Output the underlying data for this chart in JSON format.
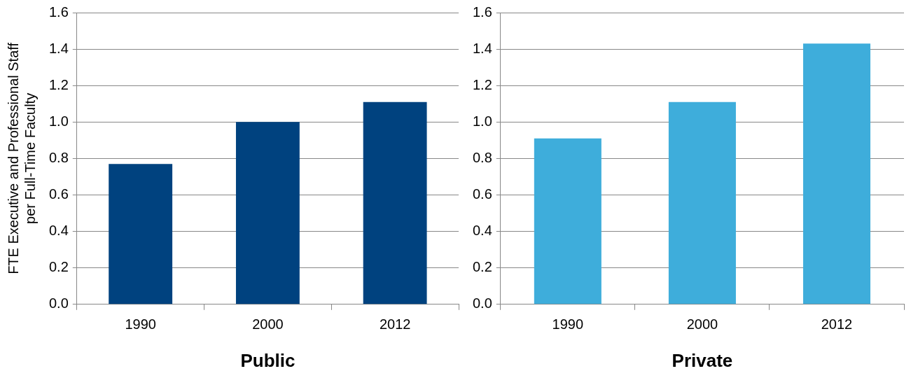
{
  "chart_data": [
    {
      "type": "bar",
      "xlabel": "Public",
      "ylabel": "FTE Executive and Professional Staff\nper Full-Time Faculty",
      "categories": [
        "1990",
        "2000",
        "2012"
      ],
      "values": [
        0.77,
        1.0,
        1.11
      ],
      "color": "#00427f",
      "ylim": [
        0,
        1.6
      ],
      "yticks": [
        {
          "value": 0,
          "label": "0.0"
        },
        {
          "value": 0.2,
          "label": "0.2"
        },
        {
          "value": 0.4,
          "label": "0.4"
        },
        {
          "value": 0.6,
          "label": "0.6"
        },
        {
          "value": 0.8,
          "label": "0.8"
        },
        {
          "value": 1.0,
          "label": "1.0"
        },
        {
          "value": 1.2,
          "label": "1.2"
        },
        {
          "value": 1.4,
          "label": "1.4"
        },
        {
          "value": 1.6,
          "label": "1.6"
        }
      ],
      "grid": "y"
    },
    {
      "type": "bar",
      "xlabel": "Private",
      "categories": [
        "1990",
        "2000",
        "2012"
      ],
      "values": [
        0.91,
        1.11,
        1.43
      ],
      "color": "#3eaddb",
      "ylim": [
        0,
        1.6
      ],
      "yticks": [
        {
          "value": 0,
          "label": "0.0"
        },
        {
          "value": 0.2,
          "label": "0.2"
        },
        {
          "value": 0.4,
          "label": "0.4"
        },
        {
          "value": 0.6,
          "label": "0.6"
        },
        {
          "value": 0.8,
          "label": "0.8"
        },
        {
          "value": 1.0,
          "label": "1.0"
        },
        {
          "value": 1.2,
          "label": "1.2"
        },
        {
          "value": 1.4,
          "label": "1.4"
        },
        {
          "value": 1.6,
          "label": "1.6"
        }
      ],
      "grid": "y"
    }
  ]
}
